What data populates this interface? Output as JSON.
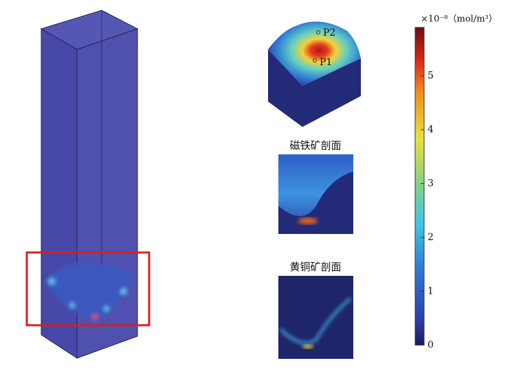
{
  "colorbar": {
    "unit": "×10⁻⁸（mol/m³）",
    "lim": [
      0,
      5.9
    ],
    "ticks": [
      0,
      1,
      2,
      3,
      4,
      5
    ]
  },
  "labels": {
    "p1": "P1",
    "p2": "P2",
    "magnetite": "磁铁矿剖面",
    "chalcopyrite": "黄铜矿剖面"
  }
}
